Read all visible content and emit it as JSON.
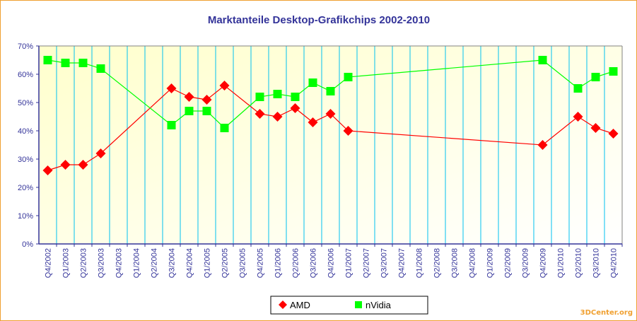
{
  "chart_data": {
    "type": "line",
    "title": "Marktanteile Desktop-Grafikchips 2002-2010",
    "xlabel": "",
    "ylabel": "",
    "ylim": [
      0,
      70
    ],
    "yticks": [
      "0%",
      "10%",
      "20%",
      "30%",
      "40%",
      "50%",
      "60%",
      "70%"
    ],
    "grid": "vertical",
    "legend_position": "bottom",
    "categories": [
      "Q4/2002",
      "Q1/2003",
      "Q2/2003",
      "Q3/2003",
      "Q4/2003",
      "Q1/2004",
      "Q2/2004",
      "Q3/2004",
      "Q4/2004",
      "Q1/2005",
      "Q2/2005",
      "Q3/2005",
      "Q4/2005",
      "Q1/2006",
      "Q2/2006",
      "Q3/2006",
      "Q4/2006",
      "Q1/2007",
      "Q2/2007",
      "Q3/2007",
      "Q4/2007",
      "Q1/2008",
      "Q2/2008",
      "Q3/2008",
      "Q4/2008",
      "Q1/2009",
      "Q2/2009",
      "Q3/2009",
      "Q4/2009",
      "Q1/2010",
      "Q2/2010",
      "Q3/2010",
      "Q4/2010"
    ],
    "series": [
      {
        "name": "AMD",
        "color": "#ff0000",
        "marker": "diamond",
        "values": [
          26,
          28,
          28,
          32,
          null,
          null,
          null,
          55,
          52,
          51,
          56,
          null,
          46,
          45,
          48,
          43,
          46,
          40,
          null,
          null,
          null,
          null,
          null,
          null,
          null,
          null,
          null,
          null,
          35,
          null,
          45,
          41,
          39
        ]
      },
      {
        "name": "nVidia",
        "color": "#00ff00",
        "marker": "square",
        "values": [
          65,
          64,
          64,
          62,
          null,
          null,
          null,
          42,
          47,
          47,
          41,
          null,
          52,
          53,
          52,
          57,
          54,
          59,
          null,
          null,
          null,
          null,
          null,
          null,
          null,
          null,
          null,
          null,
          65,
          null,
          55,
          59,
          61
        ]
      }
    ]
  },
  "watermark": "3DCenter.org"
}
